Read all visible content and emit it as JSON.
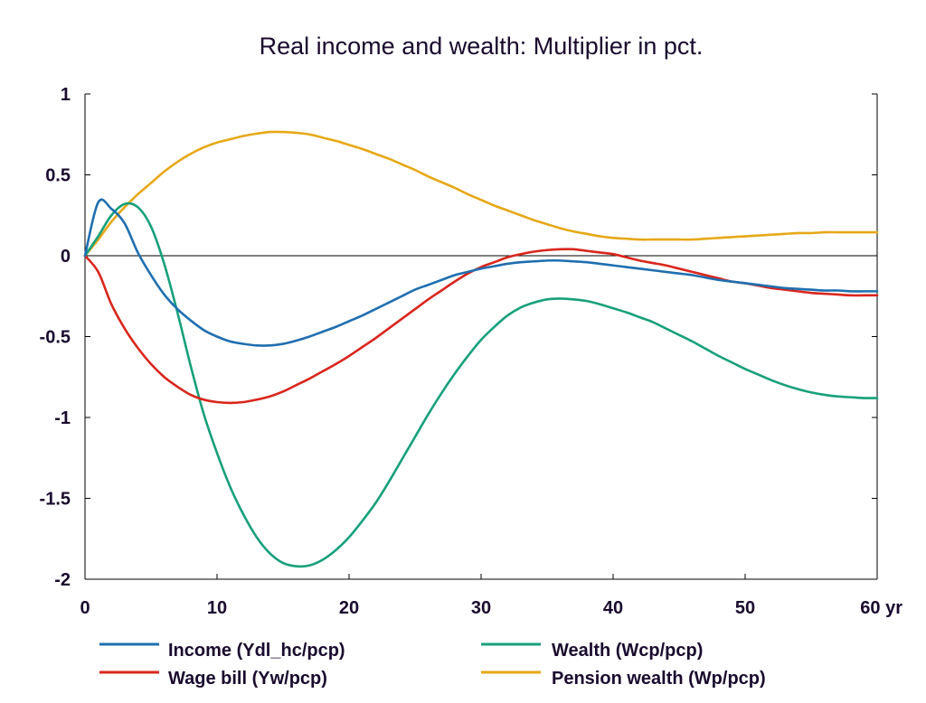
{
  "chart_data": {
    "type": "line",
    "title": "Real income and wealth: Multiplier in pct.",
    "xlabel": "",
    "ylabel": "",
    "x_unit_label": "yr",
    "xlim": [
      0,
      60
    ],
    "ylim": [
      -2,
      1
    ],
    "x_ticks": [
      0,
      10,
      20,
      30,
      40,
      50,
      60
    ],
    "x_tick_labels": [
      "0",
      "10",
      "20",
      "30",
      "40",
      "50",
      "60 yr"
    ],
    "y_ticks": [
      1,
      0.5,
      0,
      -0.5,
      -1,
      -1.5,
      -2
    ],
    "y_tick_labels": [
      "1",
      "0.5",
      "0",
      "-0.5",
      "-1",
      "-1.5",
      "-2"
    ],
    "zero_line": true,
    "grid": false,
    "legend_position": "bottom",
    "x": [
      0,
      1,
      2,
      3,
      4,
      5,
      6,
      7,
      8,
      9,
      10,
      11,
      12,
      13,
      14,
      15,
      16,
      17,
      18,
      19,
      20,
      21,
      22,
      23,
      24,
      25,
      26,
      27,
      28,
      29,
      30,
      31,
      32,
      33,
      34,
      35,
      36,
      37,
      38,
      39,
      40,
      41,
      42,
      43,
      44,
      45,
      46,
      47,
      48,
      49,
      50,
      51,
      52,
      53,
      54,
      55,
      56,
      57,
      58,
      59,
      60
    ],
    "series": [
      {
        "name": "Income (Ydl_hc/pcp)",
        "color": "#1f6fb0",
        "values": [
          0.0,
          0.33,
          0.29,
          0.2,
          0.02,
          -0.12,
          -0.24,
          -0.33,
          -0.4,
          -0.46,
          -0.5,
          -0.53,
          -0.545,
          -0.555,
          -0.555,
          -0.545,
          -0.525,
          -0.5,
          -0.47,
          -0.44,
          -0.405,
          -0.37,
          -0.33,
          -0.29,
          -0.25,
          -0.21,
          -0.18,
          -0.15,
          -0.12,
          -0.1,
          -0.08,
          -0.065,
          -0.05,
          -0.04,
          -0.035,
          -0.03,
          -0.03,
          -0.035,
          -0.04,
          -0.05,
          -0.06,
          -0.07,
          -0.08,
          -0.09,
          -0.1,
          -0.11,
          -0.12,
          -0.135,
          -0.15,
          -0.16,
          -0.17,
          -0.18,
          -0.19,
          -0.2,
          -0.205,
          -0.21,
          -0.215,
          -0.215,
          -0.22,
          -0.22,
          -0.22
        ]
      },
      {
        "name": "Wage bill (Yw/pcp)",
        "color": "#d9261c",
        "values": [
          0.0,
          -0.1,
          -0.3,
          -0.45,
          -0.57,
          -0.67,
          -0.75,
          -0.81,
          -0.86,
          -0.89,
          -0.905,
          -0.91,
          -0.905,
          -0.89,
          -0.87,
          -0.84,
          -0.8,
          -0.76,
          -0.715,
          -0.67,
          -0.62,
          -0.565,
          -0.51,
          -0.45,
          -0.39,
          -0.33,
          -0.27,
          -0.215,
          -0.16,
          -0.11,
          -0.07,
          -0.04,
          -0.01,
          0.01,
          0.025,
          0.035,
          0.04,
          0.04,
          0.03,
          0.02,
          0.01,
          -0.01,
          -0.03,
          -0.045,
          -0.06,
          -0.08,
          -0.1,
          -0.12,
          -0.14,
          -0.16,
          -0.17,
          -0.185,
          -0.2,
          -0.21,
          -0.22,
          -0.23,
          -0.235,
          -0.24,
          -0.245,
          -0.245,
          -0.245
        ]
      },
      {
        "name": "Wealth (Wcp/pcp)",
        "color": "#17a07a",
        "values": [
          0.0,
          0.12,
          0.25,
          0.32,
          0.3,
          0.18,
          -0.05,
          -0.35,
          -0.68,
          -0.98,
          -1.22,
          -1.43,
          -1.6,
          -1.74,
          -1.84,
          -1.9,
          -1.92,
          -1.915,
          -1.88,
          -1.82,
          -1.74,
          -1.64,
          -1.53,
          -1.4,
          -1.26,
          -1.12,
          -0.98,
          -0.85,
          -0.73,
          -0.62,
          -0.52,
          -0.44,
          -0.37,
          -0.32,
          -0.29,
          -0.27,
          -0.265,
          -0.27,
          -0.28,
          -0.3,
          -0.325,
          -0.35,
          -0.38,
          -0.41,
          -0.45,
          -0.49,
          -0.53,
          -0.575,
          -0.62,
          -0.66,
          -0.7,
          -0.735,
          -0.77,
          -0.8,
          -0.825,
          -0.845,
          -0.86,
          -0.87,
          -0.875,
          -0.88,
          -0.88
        ]
      },
      {
        "name": "Pension wealth (Wp/pcp)",
        "color": "#e6a817",
        "values": [
          0.0,
          0.1,
          0.21,
          0.3,
          0.38,
          0.45,
          0.52,
          0.58,
          0.63,
          0.67,
          0.7,
          0.72,
          0.74,
          0.755,
          0.765,
          0.765,
          0.76,
          0.75,
          0.73,
          0.71,
          0.685,
          0.66,
          0.63,
          0.6,
          0.565,
          0.53,
          0.49,
          0.455,
          0.42,
          0.38,
          0.345,
          0.31,
          0.28,
          0.25,
          0.22,
          0.195,
          0.17,
          0.15,
          0.135,
          0.12,
          0.11,
          0.105,
          0.1,
          0.1,
          0.1,
          0.1,
          0.1,
          0.105,
          0.11,
          0.115,
          0.12,
          0.125,
          0.13,
          0.135,
          0.14,
          0.14,
          0.145,
          0.145,
          0.145,
          0.145,
          0.145
        ]
      }
    ],
    "legend_layout": [
      {
        "series_index": 0,
        "column": 0,
        "row": 0
      },
      {
        "series_index": 2,
        "column": 1,
        "row": 0
      },
      {
        "series_index": 1,
        "column": 0,
        "row": 1
      },
      {
        "series_index": 3,
        "column": 1,
        "row": 1
      }
    ]
  }
}
